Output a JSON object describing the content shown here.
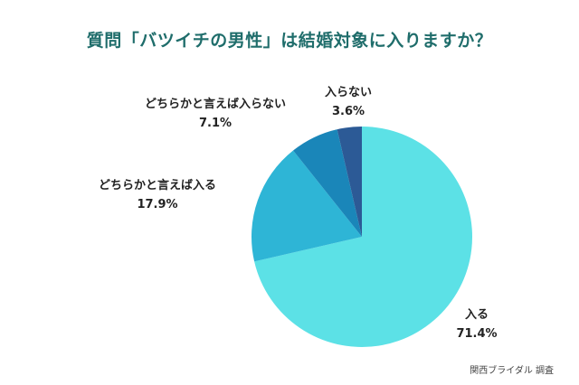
{
  "chart_data": {
    "type": "pie",
    "title": "質問「バツイチの男性」は結婚対象に入りますか？",
    "slices": [
      {
        "label": "入る",
        "value": 71.4,
        "display": "71.4%",
        "color": "#5ce1e6"
      },
      {
        "label": "どちらかと言えば入る",
        "value": 17.9,
        "display": "17.9%",
        "color": "#2eb5d6"
      },
      {
        "label": "どちらかと言えば入らない",
        "value": 7.1,
        "display": "7.1%",
        "color": "#1a86b9"
      },
      {
        "label": "入らない",
        "value": 3.6,
        "display": "3.6%",
        "color": "#2c5a96"
      }
    ]
  },
  "source": "関西ブライダル 調査"
}
